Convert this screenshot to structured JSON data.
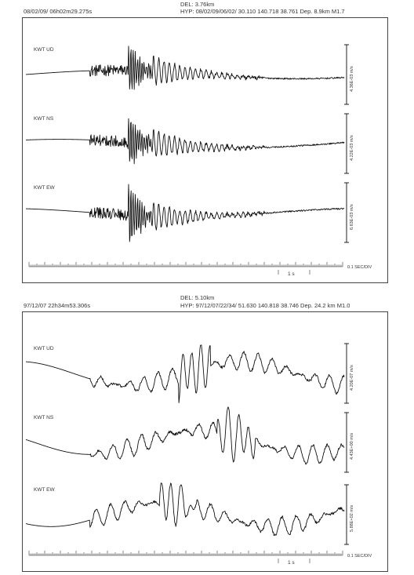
{
  "chart_data": [
    {
      "type": "line",
      "header_time": "08/02/09/ 06h02m29.275s",
      "del": "DEL:  3.76km",
      "hyp": "HYP: 08/02/09/06/02/ 30.110  140.718  38.761 Dep. 8.9km M1.7",
      "scale_label": "0.1 SEC/DIV",
      "time_marker": "1 s",
      "series": [
        {
          "name": "KWT   UD",
          "amplitude": "4.36E-03 m/s"
        },
        {
          "name": "KWT   NS",
          "amplitude": "4.22E-03 m/s"
        },
        {
          "name": "KWT   EW",
          "amplitude": "6.63E-03 m/s"
        }
      ]
    },
    {
      "type": "line",
      "header_time": "97/12/07 22h34m53.306s",
      "del": "DEL:  5.10km",
      "hyp": "HYP: 97/12/07/22/34/ 51.630  140.818  38.746 Dep. 24.2 km M1.0",
      "scale_label": "0.1 SEC/DIV",
      "time_marker": "1 s",
      "series": [
        {
          "name": "KWT   UD",
          "amplitude": "4.20E-07 m/s"
        },
        {
          "name": "KWT   NS",
          "amplitude": "4.43E+00 m/s"
        },
        {
          "name": "KWT   EW",
          "amplitude": "5.88E+02 m/s"
        }
      ]
    }
  ]
}
